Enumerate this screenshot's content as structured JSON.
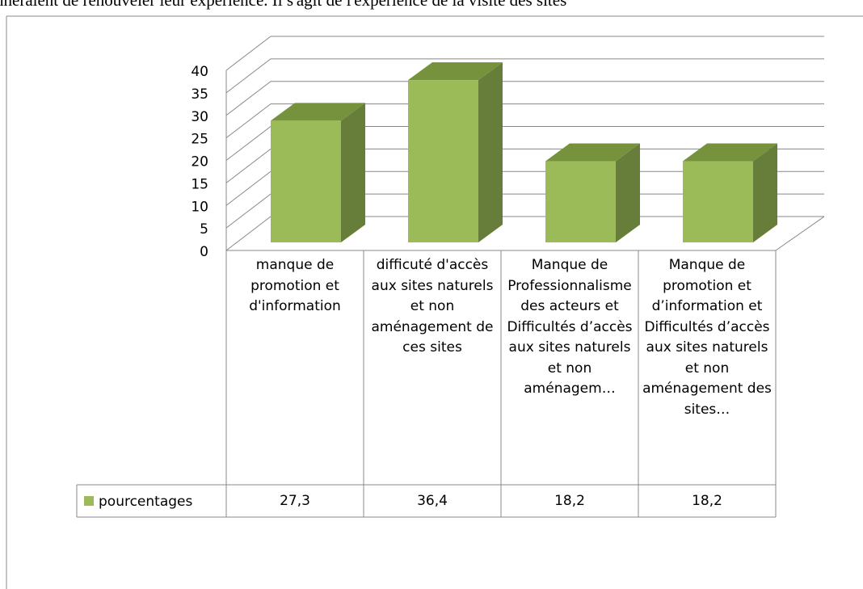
{
  "page_text": "nheraient de renouveler leur expérience. Il s'agit de l'expérience de la visite des sites",
  "chart_data": {
    "type": "bar3d",
    "categories": [
      "manque de promotion et d'information",
      "difficuté d'accès aux sites naturels et non aménagement de ces sites",
      "Manque de Professionnalisme des acteurs et Difficultés d’accès aux sites naturels et non aménagem…",
      "Manque de promotion et d’information et Difficultés d’accès aux sites naturels et non aménagement des sites…"
    ],
    "series": [
      {
        "name": "pourcentages",
        "color": "#9bbb59",
        "values": [
          27.3,
          36.4,
          18.2,
          18.2
        ],
        "value_labels": [
          "27,3",
          "36,4",
          "18,2",
          "18,2"
        ]
      }
    ],
    "ylim": [
      0,
      40
    ],
    "yticks": [
      0,
      5,
      10,
      15,
      20,
      25,
      30,
      35,
      40
    ],
    "grid": true,
    "data_table": true
  }
}
